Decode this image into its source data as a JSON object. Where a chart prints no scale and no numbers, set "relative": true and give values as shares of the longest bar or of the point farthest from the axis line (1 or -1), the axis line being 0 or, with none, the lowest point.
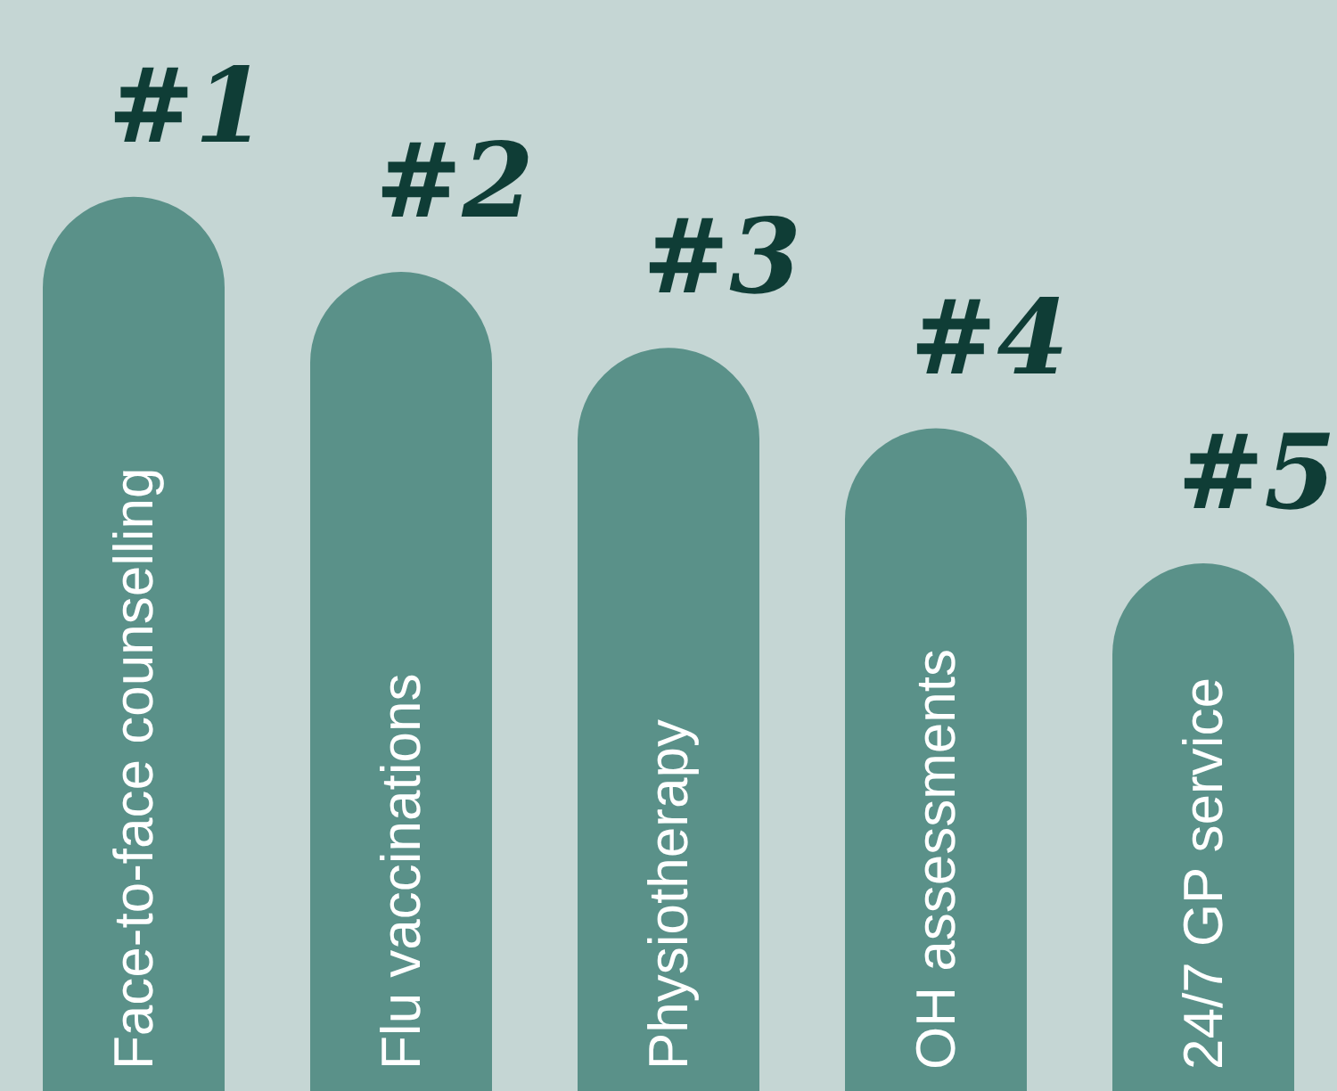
{
  "chart_data": {
    "type": "bar",
    "relative": true,
    "categories": [
      "Face-to-face counselling",
      "Flu vaccinations",
      "Physiotherapy",
      "OH assessments",
      "24/7 GP service"
    ],
    "values": [
      1,
      0.916,
      0.831,
      0.741,
      0.59
    ],
    "annotations": [
      {
        "text": "#1",
        "x": "Face-to-face counselling",
        "y": 1
      },
      {
        "text": "#2",
        "x": "Flu vaccinations",
        "y": 0.916
      },
      {
        "text": "#3",
        "x": "Physiotherapy",
        "y": 0.831
      },
      {
        "text": "#4",
        "x": "OH assessments",
        "y": 0.741
      },
      {
        "text": "#5",
        "x": "24/7 GP service",
        "y": 0.59
      }
    ],
    "color": "#5a9189"
  }
}
